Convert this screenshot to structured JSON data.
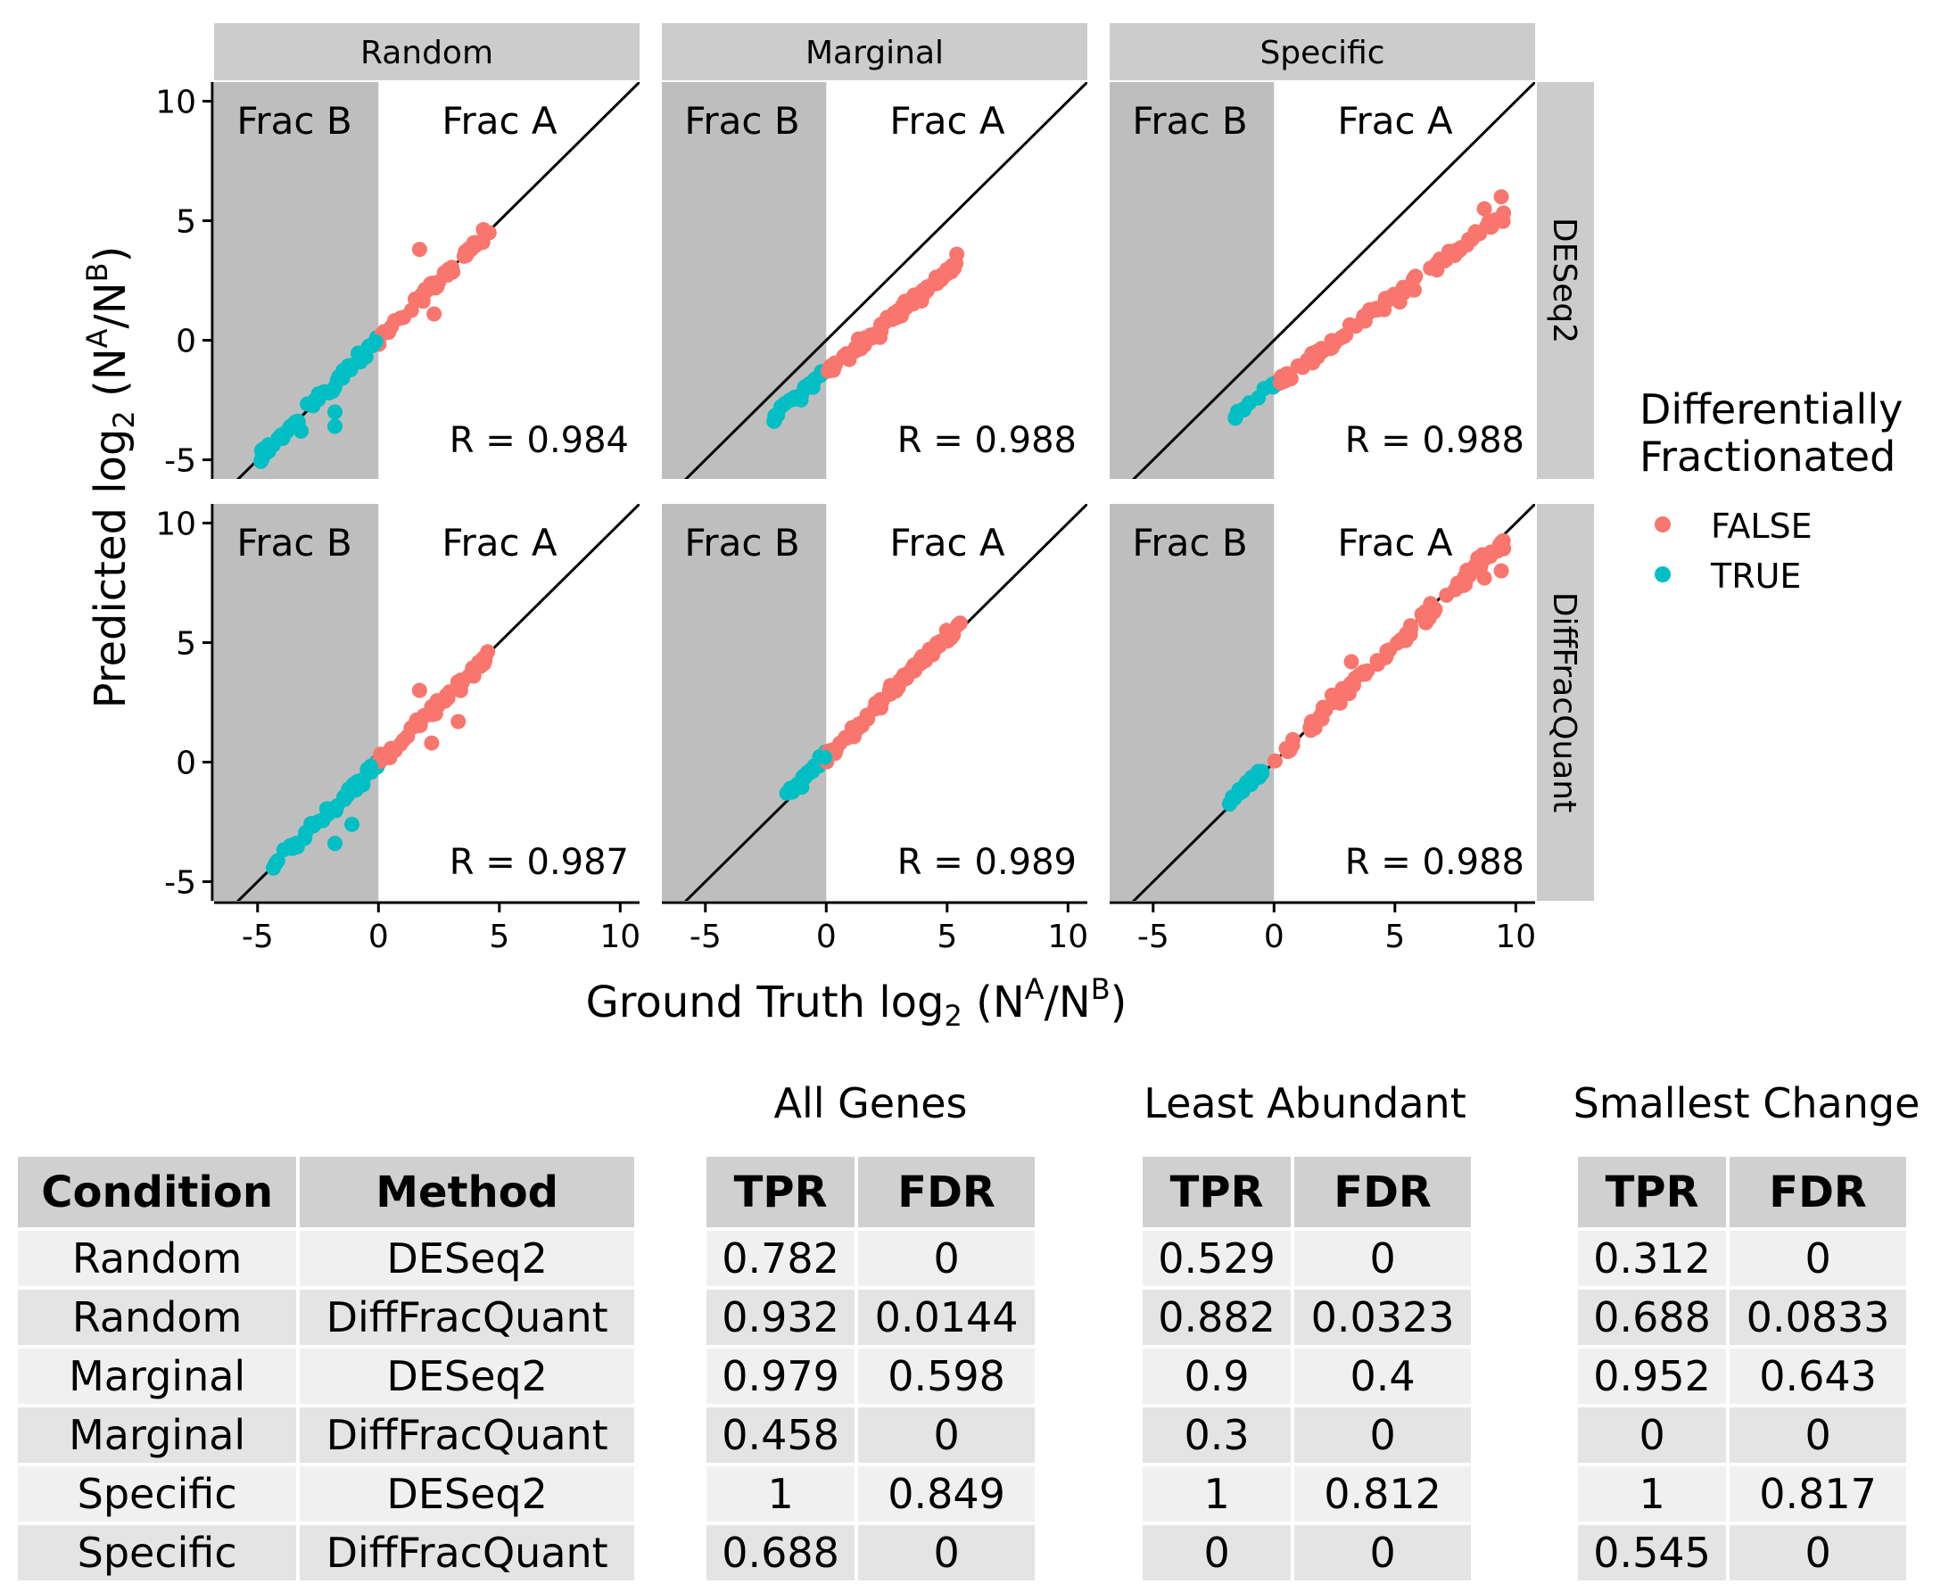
{
  "chart_data": {
    "type": "scatter",
    "x_axis_label": "Ground Truth log",
    "y_axis_label": "Predicted log",
    "log_subscript": "2",
    "ratio_open": " (N",
    "ratio_sup_a": "A",
    "ratio_slash": "/N",
    "ratio_sup_b": "B",
    "ratio_close": ")",
    "xlim": [
      -6.8,
      10.8
    ],
    "ylim": [
      -5.8,
      10.8
    ],
    "x_ticks": [
      "-5",
      "0",
      "5",
      "10"
    ],
    "y_ticks": [
      "-5",
      "0",
      "5",
      "10"
    ],
    "x_tick_values": [
      -5,
      0,
      5,
      10
    ],
    "y_tick_values": [
      -5,
      0,
      5,
      10
    ],
    "columns": [
      "Random",
      "Marginal",
      "Specific"
    ],
    "rows": [
      "DESeq2",
      "DiffFracQuant"
    ],
    "region_labels": {
      "frac_b": "Frac B",
      "frac_a": "Frac A"
    },
    "reference_line": "y = x",
    "shaded_region": "x < 0",
    "legend": {
      "title_line1": "Differentially",
      "title_line2": "Fractionated",
      "entries": [
        {
          "label": "FALSE",
          "color": "#F8766D"
        },
        {
          "label": "TRUE",
          "color": "#00BFC4"
        }
      ],
      "position": "right"
    },
    "panels": [
      {
        "column": "Random",
        "row": "DESeq2",
        "r_label": "R = 0.984",
        "slope": 1.0,
        "intercept": 0.0,
        "x_min": -4.9,
        "x_max": 4.6,
        "outliers_true": [
          [
            -1.8,
            -3.0
          ],
          [
            -1.8,
            -3.6
          ],
          [
            -3.2,
            -3.8
          ]
        ],
        "outliers_false": [
          [
            1.7,
            3.8
          ],
          [
            2.3,
            1.1
          ]
        ]
      },
      {
        "column": "Marginal",
        "row": "DESeq2",
        "r_label": "R = 0.988",
        "slope": 0.84,
        "intercept": -1.35,
        "x_min": -2.2,
        "x_max": 5.5,
        "outliers_true": [],
        "outliers_false": [
          [
            5.4,
            3.6
          ]
        ]
      },
      {
        "column": "Specific",
        "row": "DESeq2",
        "r_label": "R = 0.988",
        "slope": 0.75,
        "intercept": -1.9,
        "x_min": -1.8,
        "x_max": 9.5,
        "outliers_true": [],
        "outliers_false": [
          [
            8.7,
            5.5
          ],
          [
            9.4,
            6.0
          ],
          [
            5.2,
            1.6
          ],
          [
            5.8,
            2.1
          ]
        ]
      },
      {
        "column": "Random",
        "row": "DiffFracQuant",
        "r_label": "R = 0.987",
        "slope": 0.98,
        "intercept": -0.05,
        "x_min": -4.9,
        "x_max": 4.6,
        "outliers_true": [
          [
            -1.8,
            -3.4
          ],
          [
            -1.1,
            -2.6
          ]
        ],
        "outliers_false": [
          [
            1.7,
            3.0
          ],
          [
            2.2,
            0.8
          ],
          [
            3.3,
            1.7
          ]
        ]
      },
      {
        "column": "Marginal",
        "row": "DiffFracQuant",
        "r_label": "R = 0.989",
        "slope": 1.0,
        "intercept": 0.25,
        "x_min": -2.0,
        "x_max": 5.6,
        "outliers_true": [],
        "outliers_false": []
      },
      {
        "column": "Specific",
        "row": "DiffFracQuant",
        "r_label": "R = 0.988",
        "slope": 0.96,
        "intercept": 0.1,
        "x_min": -1.9,
        "x_max": 9.5,
        "outliers_true": [],
        "outliers_false": [
          [
            8.7,
            7.7
          ],
          [
            9.4,
            8.0
          ],
          [
            3.2,
            4.2
          ],
          [
            2.4,
            2.8
          ]
        ]
      }
    ]
  },
  "tables": {
    "left": {
      "headers": [
        "Condition",
        "Method"
      ],
      "rows": [
        [
          "Random",
          "DESeq2"
        ],
        [
          "Random",
          "DiffFracQuant"
        ],
        [
          "Marginal",
          "DESeq2"
        ],
        [
          "Marginal",
          "DiffFracQuant"
        ],
        [
          "Specific",
          "DESeq2"
        ],
        [
          "Specific",
          "DiffFracQuant"
        ]
      ]
    },
    "groups": [
      {
        "title": "All Genes",
        "headers": [
          "TPR",
          "FDR"
        ],
        "rows": [
          [
            "0.782",
            "0"
          ],
          [
            "0.932",
            "0.0144"
          ],
          [
            "0.979",
            "0.598"
          ],
          [
            "0.458",
            "0"
          ],
          [
            "1",
            "0.849"
          ],
          [
            "0.688",
            "0"
          ]
        ]
      },
      {
        "title": "Least Abundant",
        "headers": [
          "TPR",
          "FDR"
        ],
        "rows": [
          [
            "0.529",
            "0"
          ],
          [
            "0.882",
            "0.0323"
          ],
          [
            "0.9",
            "0.4"
          ],
          [
            "0.3",
            "0"
          ],
          [
            "1",
            "0.812"
          ],
          [
            "0",
            "0"
          ]
        ]
      },
      {
        "title": "Smallest Change",
        "headers": [
          "TPR",
          "FDR"
        ],
        "rows": [
          [
            "0.312",
            "0"
          ],
          [
            "0.688",
            "0.0833"
          ],
          [
            "0.952",
            "0.643"
          ],
          [
            "0",
            "0"
          ],
          [
            "1",
            "0.817"
          ],
          [
            "0.545",
            "0"
          ]
        ]
      }
    ]
  }
}
